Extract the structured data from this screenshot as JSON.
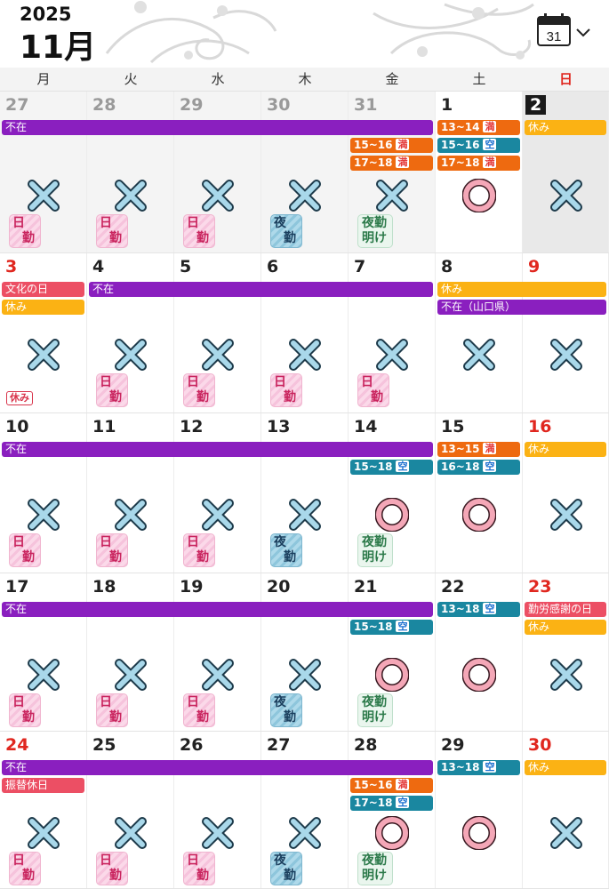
{
  "header": {
    "year": "2025",
    "month": "11月",
    "calendar_icon_day": "31"
  },
  "weekdays": [
    "月",
    "火",
    "水",
    "木",
    "金",
    "土",
    "日"
  ],
  "weeks": [
    {
      "days": [
        {
          "num": "27",
          "tone": "gray",
          "other": true,
          "mark": "x",
          "stamp": "day"
        },
        {
          "num": "28",
          "tone": "gray",
          "other": true,
          "mark": "x",
          "stamp": "day"
        },
        {
          "num": "29",
          "tone": "gray",
          "other": true,
          "mark": "x",
          "stamp": "day"
        },
        {
          "num": "30",
          "tone": "gray",
          "other": true,
          "mark": "x",
          "stamp": "night"
        },
        {
          "num": "31",
          "tone": "gray",
          "other": true,
          "mark": "x",
          "stamp": "ake"
        },
        {
          "num": "1",
          "tone": "normal",
          "other": false,
          "mark": "o",
          "stamp": ""
        },
        {
          "num": "2",
          "tone": "today",
          "other": false,
          "today": true,
          "mark": "x",
          "stamp": ""
        }
      ],
      "bars": [
        {
          "row": 0,
          "start": 0,
          "span": 5,
          "color": "purple",
          "label": "不在"
        },
        {
          "row": 0,
          "start": 5,
          "span": 1,
          "color": "orange",
          "label": "13~14",
          "tag": "満"
        },
        {
          "row": 0,
          "start": 6,
          "span": 1,
          "color": "yellow",
          "label": "休み"
        },
        {
          "row": 1,
          "start": 4,
          "span": 1,
          "color": "orange",
          "label": "15~16",
          "tag": "満"
        },
        {
          "row": 1,
          "start": 5,
          "span": 1,
          "color": "teal",
          "label": "15~16",
          "tag": "空"
        },
        {
          "row": 2,
          "start": 4,
          "span": 1,
          "color": "orange",
          "label": "17~18",
          "tag": "満"
        },
        {
          "row": 2,
          "start": 5,
          "span": 1,
          "color": "orange",
          "label": "17~18",
          "tag": "満"
        }
      ]
    },
    {
      "days": [
        {
          "num": "3",
          "tone": "red",
          "mark": "x",
          "stamp": "",
          "holiday_badge": "休み"
        },
        {
          "num": "4",
          "tone": "normal",
          "mark": "x",
          "stamp": "day"
        },
        {
          "num": "5",
          "tone": "normal",
          "mark": "x",
          "stamp": "day"
        },
        {
          "num": "6",
          "tone": "normal",
          "mark": "x",
          "stamp": "day"
        },
        {
          "num": "7",
          "tone": "normal",
          "mark": "x",
          "stamp": "day"
        },
        {
          "num": "8",
          "tone": "normal",
          "mark": "x",
          "stamp": ""
        },
        {
          "num": "9",
          "tone": "red",
          "mark": "x",
          "stamp": ""
        }
      ],
      "bars": [
        {
          "row": 0,
          "start": 0,
          "span": 1,
          "color": "red",
          "label": "文化の日"
        },
        {
          "row": 0,
          "start": 1,
          "span": 4,
          "color": "purple",
          "label": "不在"
        },
        {
          "row": 0,
          "start": 5,
          "span": 2,
          "color": "yellow",
          "label": "休み"
        },
        {
          "row": 1,
          "start": 0,
          "span": 1,
          "color": "yellow",
          "label": "休み"
        },
        {
          "row": 1,
          "start": 5,
          "span": 2,
          "color": "purple",
          "label": "不在（山口県）"
        }
      ]
    },
    {
      "days": [
        {
          "num": "10",
          "tone": "normal",
          "mark": "x",
          "stamp": "day"
        },
        {
          "num": "11",
          "tone": "normal",
          "mark": "x",
          "stamp": "day"
        },
        {
          "num": "12",
          "tone": "normal",
          "mark": "x",
          "stamp": "day"
        },
        {
          "num": "13",
          "tone": "normal",
          "mark": "x",
          "stamp": "night"
        },
        {
          "num": "14",
          "tone": "normal",
          "mark": "o",
          "stamp": "ake"
        },
        {
          "num": "15",
          "tone": "normal",
          "mark": "o",
          "stamp": ""
        },
        {
          "num": "16",
          "tone": "red",
          "mark": "x",
          "stamp": ""
        }
      ],
      "bars": [
        {
          "row": 0,
          "start": 0,
          "span": 5,
          "color": "purple",
          "label": "不在"
        },
        {
          "row": 0,
          "start": 5,
          "span": 1,
          "color": "orange",
          "label": "13~15",
          "tag": "満"
        },
        {
          "row": 0,
          "start": 6,
          "span": 1,
          "color": "yellow",
          "label": "休み"
        },
        {
          "row": 1,
          "start": 4,
          "span": 1,
          "color": "teal",
          "label": "15~18",
          "tag": "空"
        },
        {
          "row": 1,
          "start": 5,
          "span": 1,
          "color": "teal",
          "label": "16~18",
          "tag": "空"
        }
      ]
    },
    {
      "days": [
        {
          "num": "17",
          "tone": "normal",
          "mark": "x",
          "stamp": "day"
        },
        {
          "num": "18",
          "tone": "normal",
          "mark": "x",
          "stamp": "day"
        },
        {
          "num": "19",
          "tone": "normal",
          "mark": "x",
          "stamp": "day"
        },
        {
          "num": "20",
          "tone": "normal",
          "mark": "x",
          "stamp": "night"
        },
        {
          "num": "21",
          "tone": "normal",
          "mark": "o",
          "stamp": "ake"
        },
        {
          "num": "22",
          "tone": "normal",
          "mark": "o",
          "stamp": ""
        },
        {
          "num": "23",
          "tone": "red",
          "mark": "x",
          "stamp": ""
        }
      ],
      "bars": [
        {
          "row": 0,
          "start": 0,
          "span": 5,
          "color": "purple",
          "label": "不在"
        },
        {
          "row": 0,
          "start": 5,
          "span": 1,
          "color": "teal",
          "label": "13~18",
          "tag": "空"
        },
        {
          "row": 0,
          "start": 6,
          "span": 1,
          "color": "red",
          "label": "勤労感謝の日"
        },
        {
          "row": 1,
          "start": 4,
          "span": 1,
          "color": "teal",
          "label": "15~18",
          "tag": "空"
        },
        {
          "row": 1,
          "start": 6,
          "span": 1,
          "color": "yellow",
          "label": "休み"
        }
      ]
    },
    {
      "days": [
        {
          "num": "24",
          "tone": "red",
          "mark": "x",
          "stamp": "day"
        },
        {
          "num": "25",
          "tone": "normal",
          "mark": "x",
          "stamp": "day"
        },
        {
          "num": "26",
          "tone": "normal",
          "mark": "x",
          "stamp": "day"
        },
        {
          "num": "27",
          "tone": "normal",
          "mark": "x",
          "stamp": "night"
        },
        {
          "num": "28",
          "tone": "normal",
          "mark": "o",
          "stamp": "ake"
        },
        {
          "num": "29",
          "tone": "normal",
          "mark": "o",
          "stamp": ""
        },
        {
          "num": "30",
          "tone": "red",
          "mark": "x",
          "stamp": ""
        }
      ],
      "bars": [
        {
          "row": 0,
          "start": 0,
          "span": 5,
          "color": "purple",
          "label": "不在"
        },
        {
          "row": 0,
          "start": 5,
          "span": 1,
          "color": "teal",
          "label": "13~18",
          "tag": "空"
        },
        {
          "row": 0,
          "start": 6,
          "span": 1,
          "color": "yellow",
          "label": "休み"
        },
        {
          "row": 1,
          "start": 0,
          "span": 1,
          "color": "red",
          "label": "振替休日"
        },
        {
          "row": 1,
          "start": 4,
          "span": 1,
          "color": "orange",
          "label": "15~16",
          "tag": "満"
        },
        {
          "row": 2,
          "start": 4,
          "span": 1,
          "color": "teal",
          "label": "17~18",
          "tag": "空"
        }
      ]
    }
  ],
  "stamps": {
    "day": [
      "日",
      "勤"
    ],
    "night": [
      "夜",
      "勤"
    ],
    "ake": [
      "夜勤",
      "明け"
    ]
  },
  "colors": {
    "purple": "#8a1fbf",
    "yellow": "#fbb214",
    "holiday_red": "#ec4f64",
    "orange": "#ee6a10",
    "teal": "#1a87a0",
    "x_fill": "#a9d8ea",
    "o_fill": "#f4a7b7"
  }
}
